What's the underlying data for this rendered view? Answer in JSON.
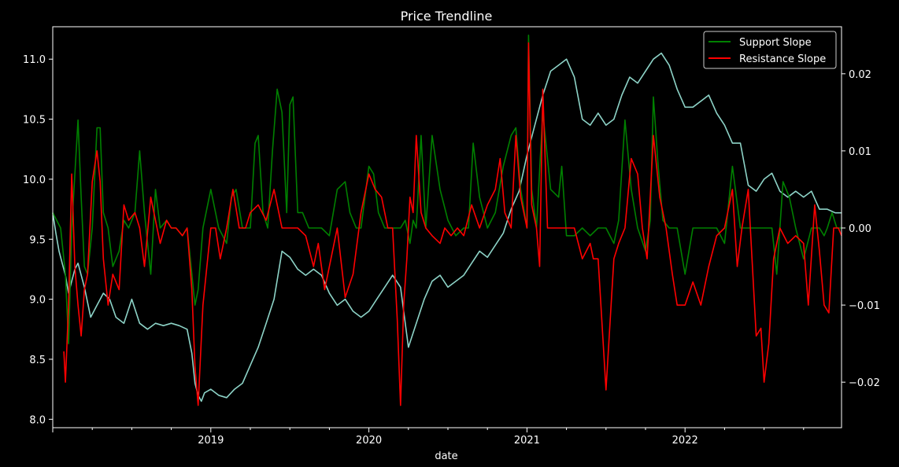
{
  "chart_data": {
    "type": "line",
    "title": "Price Trendline",
    "xlabel": "date",
    "ylabel": "",
    "x_range": [
      2018.0,
      2022.99
    ],
    "x_ticks": [
      {
        "value": 2019.0,
        "label": "2019"
      },
      {
        "value": 2020.0,
        "label": "2020"
      },
      {
        "value": 2021.0,
        "label": "2021"
      },
      {
        "value": 2022.0,
        "label": "2022"
      }
    ],
    "left_axis": {
      "ylim": [
        7.93,
        11.27
      ],
      "ticks": [
        {
          "value": 8.0,
          "label": "8.0"
        },
        {
          "value": 8.5,
          "label": "8.5"
        },
        {
          "value": 9.0,
          "label": "9.0"
        },
        {
          "value": 9.5,
          "label": "9.5"
        },
        {
          "value": 10.0,
          "label": "10.0"
        },
        {
          "value": 10.5,
          "label": "10.5"
        },
        {
          "value": 11.0,
          "label": "11.0"
        }
      ]
    },
    "right_axis": {
      "ylim": [
        -0.0259,
        0.0261
      ],
      "ticks": [
        {
          "value": -0.02,
          "label": "−0.02"
        },
        {
          "value": -0.01,
          "label": "−0.01"
        },
        {
          "value": 0.0,
          "label": "0.00"
        },
        {
          "value": 0.01,
          "label": "0.01"
        },
        {
          "value": 0.02,
          "label": "0.02"
        }
      ]
    },
    "legend_position": "top-right",
    "colors": {
      "background": "#000000",
      "foreground": "#ffffff",
      "price": "#8dd3c7",
      "support": "#008000",
      "resistance": "#ff0000"
    },
    "series": [
      {
        "axis": "left",
        "color": "#8dd3c7",
        "x": [
          2018.0,
          2018.02,
          2018.04,
          2018.06,
          2018.08,
          2018.1,
          2018.12,
          2018.14,
          2018.16,
          2018.2,
          2018.24,
          2018.28,
          2018.32,
          2018.36,
          2018.4,
          2018.45,
          2018.5,
          2018.55,
          2018.6,
          2018.65,
          2018.7,
          2018.75,
          2018.8,
          2018.85,
          2018.88,
          2018.9,
          2018.92,
          2018.94,
          2018.96,
          2019.0,
          2019.05,
          2019.1,
          2019.15,
          2019.2,
          2019.25,
          2019.3,
          2019.35,
          2019.4,
          2019.45,
          2019.5,
          2019.55,
          2019.6,
          2019.65,
          2019.7,
          2019.75,
          2019.8,
          2019.85,
          2019.9,
          2019.95,
          2020.0,
          2020.05,
          2020.1,
          2020.15,
          2020.2,
          2020.25,
          2020.3,
          2020.35,
          2020.4,
          2020.45,
          2020.5,
          2020.55,
          2020.6,
          2020.65,
          2020.7,
          2020.75,
          2020.8,
          2020.85,
          2020.9,
          2020.95,
          2021.0,
          2021.05,
          2021.1,
          2021.15,
          2021.2,
          2021.25,
          2021.3,
          2021.35,
          2021.4,
          2021.45,
          2021.5,
          2021.55,
          2021.6,
          2021.65,
          2021.7,
          2021.75,
          2021.8,
          2021.85,
          2021.9,
          2021.95,
          2022.0,
          2022.05,
          2022.1,
          2022.15,
          2022.2,
          2022.25,
          2022.3,
          2022.35,
          2022.4,
          2022.45,
          2022.5,
          2022.55,
          2022.6,
          2022.65,
          2022.7,
          2022.75,
          2022.8,
          2022.85,
          2022.9,
          2022.95,
          2022.99
        ],
        "values": [
          9.72,
          9.55,
          9.4,
          9.3,
          9.2,
          9.05,
          9.15,
          9.25,
          9.3,
          9.1,
          8.85,
          8.95,
          9.05,
          9.0,
          8.85,
          8.8,
          9.0,
          8.8,
          8.75,
          8.8,
          8.78,
          8.8,
          8.78,
          8.75,
          8.55,
          8.3,
          8.2,
          8.15,
          8.22,
          8.25,
          8.2,
          8.18,
          8.25,
          8.3,
          8.45,
          8.6,
          8.8,
          9.0,
          9.4,
          9.35,
          9.25,
          9.2,
          9.25,
          9.2,
          9.05,
          8.95,
          9.0,
          8.9,
          8.85,
          8.9,
          9.0,
          9.1,
          9.2,
          9.1,
          8.6,
          8.8,
          9.0,
          9.15,
          9.2,
          9.1,
          9.15,
          9.2,
          9.3,
          9.4,
          9.35,
          9.45,
          9.55,
          9.75,
          9.9,
          10.2,
          10.45,
          10.7,
          10.9,
          10.95,
          11.0,
          10.85,
          10.5,
          10.45,
          10.55,
          10.45,
          10.5,
          10.7,
          10.85,
          10.8,
          10.9,
          11.0,
          11.05,
          10.95,
          10.75,
          10.6,
          10.6,
          10.65,
          10.7,
          10.55,
          10.45,
          10.3,
          10.3,
          9.95,
          9.9,
          10.0,
          10.05,
          9.9,
          9.85,
          9.9,
          9.85,
          9.9,
          9.75,
          9.75,
          9.72,
          9.72
        ]
      },
      {
        "axis": "right",
        "color": "#008000",
        "name": "Support Slope",
        "x": [
          2018.0,
          2018.05,
          2018.08,
          2018.1,
          2018.12,
          2018.14,
          2018.16,
          2018.18,
          2018.2,
          2018.22,
          2018.25,
          2018.28,
          2018.3,
          2018.32,
          2018.35,
          2018.38,
          2018.42,
          2018.45,
          2018.48,
          2018.52,
          2018.55,
          2018.58,
          2018.62,
          2018.65,
          2018.68,
          2018.72,
          2018.75,
          2018.78,
          2018.82,
          2018.85,
          2018.88,
          2018.9,
          2018.92,
          2018.95,
          2019.0,
          2019.05,
          2019.1,
          2019.13,
          2019.16,
          2019.2,
          2019.25,
          2019.28,
          2019.3,
          2019.33,
          2019.36,
          2019.39,
          2019.42,
          2019.45,
          2019.48,
          2019.5,
          2019.52,
          2019.55,
          2019.58,
          2019.62,
          2019.66,
          2019.7,
          2019.75,
          2019.8,
          2019.85,
          2019.88,
          2019.92,
          2019.95,
          2020.0,
          2020.03,
          2020.06,
          2020.1,
          2020.15,
          2020.2,
          2020.23,
          2020.26,
          2020.28,
          2020.3,
          2020.33,
          2020.36,
          2020.4,
          2020.45,
          2020.5,
          2020.55,
          2020.6,
          2020.63,
          2020.66,
          2020.7,
          2020.75,
          2020.8,
          2020.85,
          2020.9,
          2020.93,
          2020.96,
          2021.0,
          2021.01,
          2021.03,
          2021.06,
          2021.1,
          2021.15,
          2021.2,
          2021.22,
          2021.25,
          2021.3,
          2021.35,
          2021.4,
          2021.45,
          2021.5,
          2021.55,
          2021.58,
          2021.62,
          2021.66,
          2021.7,
          2021.75,
          2021.78,
          2021.8,
          2021.83,
          2021.86,
          2021.9,
          2021.95,
          2022.0,
          2022.05,
          2022.1,
          2022.15,
          2022.2,
          2022.25,
          2022.3,
          2022.35,
          2022.4,
          2022.45,
          2022.5,
          2022.55,
          2022.58,
          2022.62,
          2022.66,
          2022.7,
          2022.75,
          2022.8,
          2022.85,
          2022.88,
          2022.9,
          2022.93,
          2022.96,
          2022.99
        ],
        "values": [
          0.002,
          0.0,
          -0.006,
          -0.015,
          0.0,
          0.007,
          0.014,
          0.004,
          -0.005,
          -0.006,
          0.0,
          0.013,
          0.013,
          0.002,
          0.0,
          -0.005,
          -0.003,
          0.001,
          0.0,
          0.002,
          0.01,
          0.002,
          -0.006,
          0.005,
          0.0,
          0.001,
          0.0,
          0.0,
          -0.001,
          0.0,
          -0.006,
          -0.01,
          -0.008,
          0.0,
          0.005,
          0.0,
          -0.002,
          0.004,
          0.005,
          0.0,
          0.0,
          0.011,
          0.012,
          0.002,
          0.0,
          0.01,
          0.018,
          0.015,
          0.002,
          0.016,
          0.017,
          0.002,
          0.002,
          0.0,
          0.0,
          0.0,
          -0.001,
          0.005,
          0.006,
          0.002,
          0.0,
          0.0,
          0.008,
          0.007,
          0.002,
          0.0,
          0.0,
          0.0,
          0.001,
          -0.002,
          0.001,
          0.0,
          0.012,
          0.0,
          0.012,
          0.005,
          0.001,
          -0.001,
          0.0,
          0.0,
          0.011,
          0.004,
          0.0,
          0.002,
          0.008,
          0.012,
          0.013,
          0.005,
          0.0,
          0.025,
          0.005,
          0.0,
          0.015,
          0.005,
          0.004,
          0.008,
          -0.001,
          -0.001,
          0.0,
          -0.001,
          0.0,
          0.0,
          -0.002,
          0.001,
          0.014,
          0.005,
          0.0,
          -0.003,
          0.001,
          0.017,
          0.008,
          0.001,
          0.0,
          0.0,
          -0.006,
          0.0,
          0.0,
          0.0,
          0.0,
          -0.002,
          0.008,
          0.0,
          0.0,
          0.0,
          0.0,
          0.0,
          -0.006,
          0.006,
          0.004,
          0.0,
          -0.004,
          0.0,
          0.0,
          -0.001,
          0.0,
          0.002,
          0.0,
          0.0
        ]
      },
      {
        "axis": "right",
        "color": "#ff0000",
        "name": "Resistance Slope",
        "x": [
          2018.07,
          2018.08,
          2018.1,
          2018.12,
          2018.14,
          2018.16,
          2018.18,
          2018.2,
          2018.22,
          2018.25,
          2018.28,
          2018.3,
          2018.32,
          2018.35,
          2018.38,
          2018.42,
          2018.45,
          2018.48,
          2018.52,
          2018.55,
          2018.58,
          2018.62,
          2018.65,
          2018.68,
          2018.72,
          2018.75,
          2018.78,
          2018.82,
          2018.85,
          2018.88,
          2018.9,
          2018.92,
          2018.95,
          2019.0,
          2019.03,
          2019.06,
          2019.1,
          2019.14,
          2019.18,
          2019.22,
          2019.25,
          2019.3,
          2019.35,
          2019.4,
          2019.45,
          2019.5,
          2019.55,
          2019.6,
          2019.65,
          2019.68,
          2019.72,
          2019.76,
          2019.8,
          2019.85,
          2019.9,
          2019.95,
          2020.0,
          2020.04,
          2020.08,
          2020.12,
          2020.15,
          2020.18,
          2020.2,
          2020.22,
          2020.24,
          2020.26,
          2020.28,
          2020.3,
          2020.33,
          2020.36,
          2020.4,
          2020.45,
          2020.48,
          2020.52,
          2020.56,
          2020.6,
          2020.65,
          2020.7,
          2020.75,
          2020.8,
          2020.83,
          2020.86,
          2020.9,
          2020.93,
          2020.96,
          2021.0,
          2021.01,
          2021.03,
          2021.06,
          2021.08,
          2021.1,
          2021.13,
          2021.16,
          2021.2,
          2021.25,
          2021.3,
          2021.35,
          2021.4,
          2021.42,
          2021.45,
          2021.5,
          2021.55,
          2021.58,
          2021.62,
          2021.66,
          2021.7,
          2021.73,
          2021.76,
          2021.8,
          2021.84,
          2021.88,
          2021.92,
          2021.95,
          2022.0,
          2022.05,
          2022.1,
          2022.15,
          2022.2,
          2022.25,
          2022.3,
          2022.33,
          2022.36,
          2022.4,
          2022.45,
          2022.48,
          2022.5,
          2022.53,
          2022.56,
          2022.6,
          2022.65,
          2022.7,
          2022.75,
          2022.78,
          2022.82,
          2022.85,
          2022.88,
          2022.91,
          2022.94,
          2022.97,
          2022.99
        ],
        "values": [
          -0.016,
          -0.02,
          -0.01,
          0.007,
          -0.005,
          -0.01,
          -0.014,
          -0.008,
          -0.006,
          0.006,
          0.01,
          0.006,
          -0.004,
          -0.01,
          -0.006,
          -0.008,
          0.003,
          0.001,
          0.002,
          0.0,
          -0.005,
          0.004,
          0.001,
          -0.002,
          0.001,
          0.0,
          0.0,
          -0.001,
          0.0,
          -0.008,
          -0.018,
          -0.023,
          -0.01,
          0.0,
          0.0,
          -0.004,
          0.0,
          0.005,
          0.0,
          0.0,
          0.002,
          0.003,
          0.001,
          0.005,
          0.0,
          0.0,
          0.0,
          -0.001,
          -0.005,
          -0.002,
          -0.008,
          -0.004,
          0.0,
          -0.009,
          -0.006,
          0.002,
          0.007,
          0.005,
          0.004,
          0.0,
          0.0,
          -0.012,
          -0.023,
          -0.01,
          -0.004,
          0.004,
          0.002,
          0.012,
          0.002,
          0.0,
          -0.001,
          -0.002,
          0.0,
          -0.001,
          0.0,
          -0.001,
          0.003,
          0.0,
          0.003,
          0.005,
          0.009,
          0.002,
          0.0,
          0.012,
          0.004,
          0.0,
          0.024,
          0.003,
          0.0,
          -0.005,
          0.018,
          0.0,
          0.0,
          0.0,
          0.0,
          0.0,
          -0.004,
          -0.002,
          -0.004,
          -0.004,
          -0.021,
          -0.004,
          -0.002,
          0.0,
          0.009,
          0.007,
          0.0,
          -0.004,
          0.012,
          0.004,
          0.0,
          -0.006,
          -0.01,
          -0.01,
          -0.007,
          -0.01,
          -0.005,
          -0.001,
          0.0,
          0.005,
          -0.005,
          0.0,
          0.005,
          -0.014,
          -0.013,
          -0.02,
          -0.015,
          -0.004,
          0.0,
          -0.002,
          -0.001,
          -0.002,
          -0.01,
          0.003,
          -0.003,
          -0.01,
          -0.011,
          0.0,
          0.0,
          -0.001
        ]
      }
    ]
  }
}
